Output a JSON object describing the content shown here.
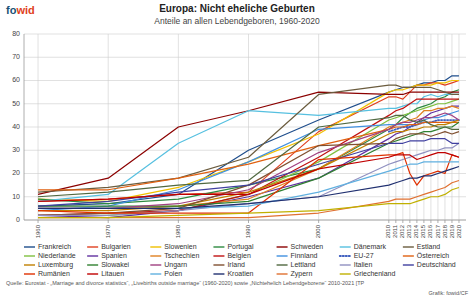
{
  "chart_data": {
    "type": "line",
    "title": "Europa: Nicht eheliche Geburten",
    "subtitle": "Anteile an allen Lebendgeboren, 1960-2020",
    "annotations": [
      {
        "text": "fo",
        "color": "#1a5276"
      },
      {
        "text": "wid",
        "color": "#e04020"
      },
      {
        "text": "Quelle: Eurostat - „Marriage and divorce statistics“, „Livebirths outside marriage“ (1960-2020) sowie „Nichtehelich Lebendgeborene“ 2010-2021 [TP",
        "color": "#555555"
      },
      {
        "text": "Grafik: fowid/CF",
        "color": "#555555"
      }
    ],
    "x": [
      1960,
      1970,
      1980,
      1990,
      2000,
      2010,
      2011,
      2012,
      2013,
      2014,
      2015,
      2016,
      2017,
      2018,
      2019,
      2020
    ],
    "xlim": [
      1958,
      2021
    ],
    "xticks": [
      1960,
      1970,
      1980,
      1990,
      2000,
      2010,
      2011,
      2012,
      2013,
      2014,
      2015,
      2016,
      2017,
      2018,
      2019,
      2020
    ],
    "ylim": [
      0,
      80
    ],
    "yticks": [
      0,
      10,
      20,
      30,
      40,
      50,
      60,
      70,
      80
    ],
    "grid": true,
    "legend": "bottom",
    "series": [
      {
        "name": "Frankreich",
        "color": "#1f4e8c",
        "line_style": "solid",
        "values": [
          6,
          7,
          11,
          30,
          43,
          55,
          56,
          57,
          57,
          58,
          59,
          59,
          60,
          60,
          62,
          62
        ]
      },
      {
        "name": "Bulgarien",
        "color": "#e04020",
        "line_style": "solid",
        "values": [
          8,
          9,
          11,
          12,
          38,
          53,
          53,
          52,
          55,
          58,
          58,
          59,
          59,
          58,
          59,
          60
        ]
      },
      {
        "name": "Slowenien",
        "color": "#f0c000",
        "line_style": "solid",
        "values": [
          9,
          8,
          14,
          25,
          37,
          55,
          56,
          56,
          57,
          58,
          58,
          58,
          59,
          59,
          60,
          60
        ]
      },
      {
        "name": "Portugal",
        "color": "#2d8a40",
        "line_style": "solid",
        "values": [
          9,
          7,
          9,
          15,
          22,
          39,
          41,
          44,
          46,
          48,
          49,
          50,
          52,
          53,
          55,
          56
        ]
      },
      {
        "name": "Schweden",
        "color": "#8b0000",
        "line_style": "solid",
        "values": [
          11,
          18,
          40,
          47,
          55,
          54,
          54,
          54,
          55,
          55,
          55,
          55,
          55,
          55,
          55,
          55
        ]
      },
      {
        "name": "Dänemark",
        "color": "#56c0e0",
        "line_style": "solid",
        "values": [
          8,
          11,
          33,
          47,
          45,
          48,
          48,
          49,
          50,
          50,
          53,
          54,
          53,
          54,
          54,
          54
        ]
      },
      {
        "name": "Estland",
        "color": "#6b5c3e",
        "line_style": "solid",
        "values": [
          12,
          14,
          18,
          27,
          54,
          58,
          58,
          57,
          57,
          57,
          57,
          57,
          56,
          55,
          54,
          54
        ]
      },
      {
        "name": "Niederlande",
        "color": "#80c040",
        "line_style": "solid",
        "values": [
          2,
          2,
          4,
          11,
          25,
          43,
          44,
          45,
          46,
          47,
          48,
          49,
          50,
          50,
          51,
          52
        ]
      },
      {
        "name": "Spanien",
        "color": "#6030a0",
        "line_style": "solid",
        "values": [
          2,
          1,
          4,
          10,
          18,
          35,
          37,
          38,
          40,
          42,
          44,
          46,
          47,
          48,
          49,
          49
        ]
      },
      {
        "name": "Tschechien",
        "color": "#e08020",
        "line_style": "solid",
        "values": [
          5,
          5,
          6,
          9,
          22,
          40,
          41,
          42,
          43,
          44,
          47,
          47,
          48,
          48,
          49,
          48
        ]
      },
      {
        "name": "Belgien",
        "color": "#c01010",
        "line_style": "solid",
        "values": [
          2,
          3,
          4,
          11,
          27,
          45,
          47,
          48,
          50,
          52,
          52,
          52,
          52,
          52,
          52,
          52
        ]
      },
      {
        "name": "Finnland",
        "color": "#4090e0",
        "line_style": "solid",
        "values": [
          4,
          6,
          13,
          25,
          39,
          41,
          41,
          41,
          41,
          41,
          43,
          44,
          44,
          45,
          46,
          47
        ]
      },
      {
        "name": "EU-27",
        "color": "#4060c0",
        "line_style": "dotted",
        "values": [
          null,
          null,
          null,
          null,
          null,
          38,
          39,
          40,
          40,
          41,
          42,
          42,
          43,
          43,
          43,
          43
        ]
      },
      {
        "name": "Österreich",
        "color": "#e06010",
        "line_style": "solid",
        "values": [
          13,
          13,
          18,
          24,
          32,
          39,
          40,
          40,
          41,
          41,
          42,
          42,
          42,
          42,
          42,
          42
        ]
      },
      {
        "name": "Luxemburg",
        "color": "#c08000",
        "line_style": "solid",
        "values": [
          4,
          4,
          6,
          12,
          22,
          37,
          38,
          38,
          39,
          39,
          40,
          40,
          41,
          41,
          42,
          43
        ]
      },
      {
        "name": "Slowakei",
        "color": "#308030",
        "line_style": "solid",
        "values": [
          6,
          6,
          6,
          8,
          18,
          33,
          34,
          35,
          36,
          37,
          38,
          38,
          39,
          40,
          40,
          42
        ]
      },
      {
        "name": "Ungarn",
        "color": "#a04080",
        "line_style": "solid",
        "values": [
          5,
          5,
          7,
          13,
          29,
          39,
          41,
          42,
          42,
          43,
          44,
          44,
          45,
          46,
          45,
          43
        ]
      },
      {
        "name": "Irland",
        "color": "#805030",
        "line_style": "solid",
        "values": [
          2,
          3,
          5,
          15,
          32,
          33,
          35,
          36,
          37,
          37,
          37,
          36,
          37,
          38,
          37,
          38
        ]
      },
      {
        "name": "Lettland",
        "color": "#506840",
        "line_style": "solid",
        "values": [
          10,
          12,
          15,
          17,
          40,
          44,
          45,
          45,
          43,
          42,
          43,
          41,
          40,
          40,
          39,
          39
        ]
      },
      {
        "name": "Italien",
        "color": "#9090c0",
        "line_style": "solid",
        "values": [
          2,
          2,
          4,
          7,
          10,
          24,
          25,
          26,
          27,
          28,
          29,
          30,
          30,
          31,
          31,
          33
        ]
      },
      {
        "name": "Deutschland",
        "color": "#4040a0",
        "line_style": "solid",
        "values": [
          6,
          8,
          12,
          15,
          24,
          33,
          33,
          33,
          34,
          34,
          34,
          35,
          35,
          35,
          33,
          33
        ]
      },
      {
        "name": "Rumänien",
        "color": "#e03000",
        "line_style": "solid",
        "values": [
          4,
          3,
          3,
          3,
          26,
          28,
          28,
          29,
          20,
          15,
          19,
          20,
          21,
          20,
          28,
          27
        ]
      },
      {
        "name": "Litauen",
        "color": "#c00000",
        "line_style": "solid",
        "values": [
          8,
          9,
          11,
          11,
          22,
          27,
          28,
          28,
          28,
          26,
          27,
          28,
          29,
          29,
          28,
          27
        ]
      },
      {
        "name": "Polen",
        "color": "#60b0e0",
        "line_style": "solid",
        "values": [
          5,
          5,
          5,
          6,
          12,
          21,
          22,
          23,
          24,
          24,
          25,
          25,
          25,
          25,
          25,
          25
        ]
      },
      {
        "name": "Kroatien",
        "color": "#203070",
        "line_style": "solid",
        "values": [
          5,
          5,
          5,
          7,
          10,
          15,
          16,
          17,
          18,
          18,
          19,
          19,
          20,
          21,
          22,
          23
        ]
      },
      {
        "name": "Zypern",
        "color": "#e07030",
        "line_style": "solid",
        "values": [
          1,
          1,
          1,
          1,
          3,
          8,
          9,
          9,
          9,
          10,
          11,
          12,
          13,
          14,
          16,
          17
        ]
      },
      {
        "name": "Griechenland",
        "color": "#c0b000",
        "line_style": "solid",
        "values": [
          1,
          1,
          2,
          3,
          4,
          7,
          7,
          7,
          7,
          8,
          9,
          10,
          10,
          11,
          13,
          14
        ]
      }
    ]
  }
}
